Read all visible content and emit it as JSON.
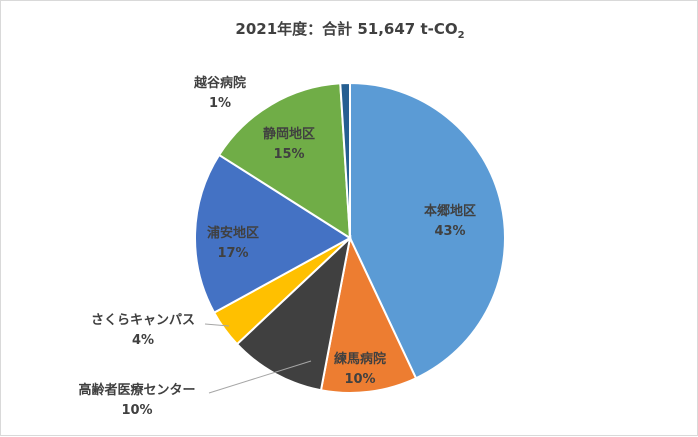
{
  "chart_data": {
    "type": "pie",
    "title_main": "2021年度：合計 51,647 t-CO",
    "title_subscript": "2",
    "start_angle_deg": 0,
    "direction": "clockwise",
    "slices": [
      {
        "name": "本郷地区",
        "value": 43,
        "label": "43%",
        "color": "#5b9bd5"
      },
      {
        "name": "練馬病院",
        "value": 10,
        "label": "10%",
        "color": "#ed7d31"
      },
      {
        "name": "高齢者医療センター",
        "value": 10,
        "label": "10%",
        "color": "#404040"
      },
      {
        "name": "さくらキャンパス",
        "value": 4,
        "label": "4%",
        "color": "#ffc000"
      },
      {
        "name": "浦安地区",
        "value": 17,
        "label": "17%",
        "color": "#4472c4"
      },
      {
        "name": "静岡地区",
        "value": 15,
        "label": "15%",
        "color": "#70ad47"
      },
      {
        "name": "越谷病院",
        "value": 1,
        "label": "1%",
        "color": "#255e91"
      }
    ]
  }
}
